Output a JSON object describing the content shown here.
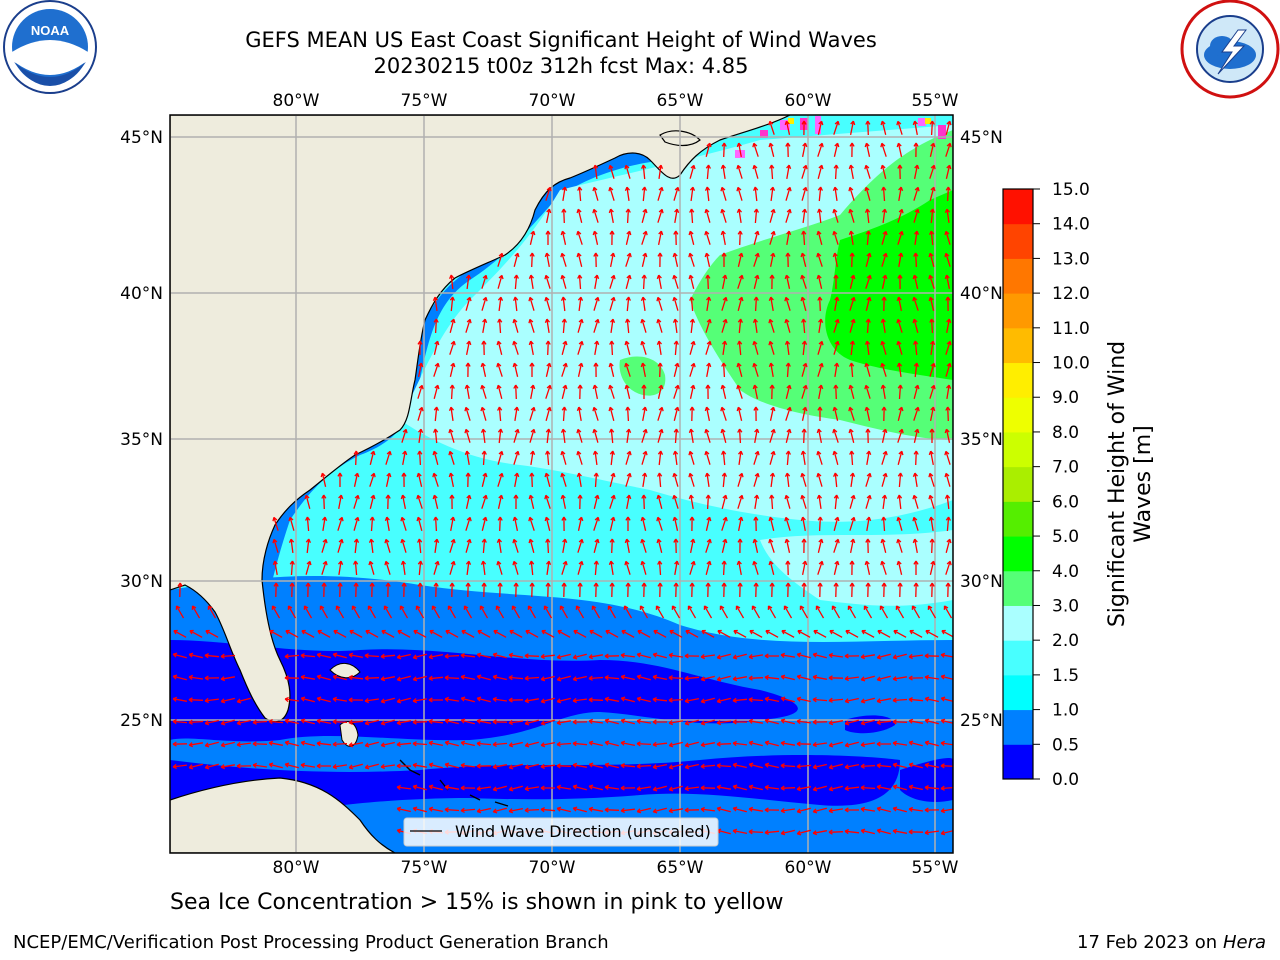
{
  "title": {
    "line1": "GEFS MEAN US East Coast Significant Height of Wind Waves",
    "line2": "20230215 t00z 312h fcst   Max: 4.85"
  },
  "logos": {
    "left": {
      "name": "noaa-logo",
      "text": "NOAA"
    },
    "right": {
      "name": "nws-logo"
    }
  },
  "map": {
    "lon_labels": [
      "80°W",
      "75°W",
      "70°W",
      "65°W",
      "60°W",
      "55°W"
    ],
    "lat_labels": [
      "45°N",
      "40°N",
      "35°N",
      "30°N",
      "25°N"
    ],
    "legend": "Wind Wave Direction (unscaled)",
    "land_color": "#eeecdd",
    "arrow_color": "#ff0000"
  },
  "colorbar": {
    "label_line1": "Significant Height of Wind",
    "label_line2": "Waves [m]",
    "ticks": [
      "0.0",
      "0.5",
      "1.0",
      "1.5",
      "2.0",
      "3.0",
      "4.0",
      "5.0",
      "6.0",
      "7.0",
      "8.0",
      "9.0",
      "10.0",
      "11.0",
      "12.0",
      "13.0",
      "14.0",
      "15.0"
    ],
    "colors": [
      "#0000ff",
      "#0080ff",
      "#00ffff",
      "#48ffff",
      "#aaffff",
      "#55ff77",
      "#00ff00",
      "#55ee00",
      "#aaee00",
      "#ccff00",
      "#eeff00",
      "#ffee00",
      "#ffbb00",
      "#ff9900",
      "#ff7700",
      "#ff4400",
      "#ff1100"
    ]
  },
  "footer": {
    "sea_ice": "Sea Ice Concentration > 15% is shown in pink to yellow",
    "credit": "NCEP/EMC/Verification Post Processing Product Generation Branch",
    "date": "17 Feb 2023 on",
    "machine": "Hera"
  }
}
